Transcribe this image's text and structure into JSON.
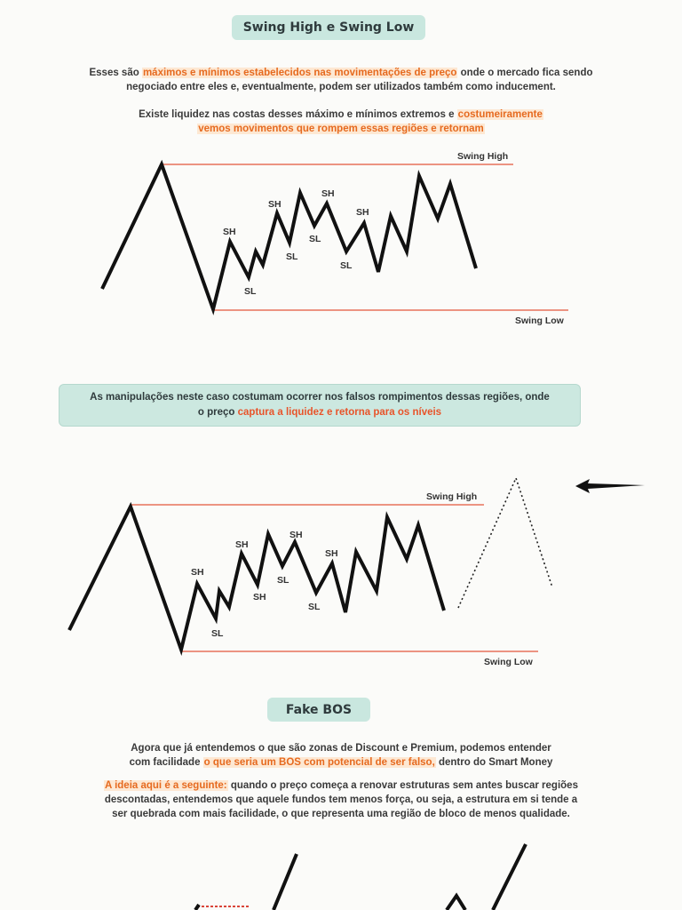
{
  "section1": {
    "title": "Swing High e Swing Low",
    "para1": {
      "a": "Esses são ",
      "highlight": "máximos e mínimos estabelecidos nas movimentações de preço",
      "b": " onde o mercado fica sendo",
      "line2": "negociado entre eles e, eventualmente, podem ser utilizados também como inducement."
    },
    "para2": {
      "a": "Existe liquidez nas costas desses máximo e mínimos extremos e ",
      "highlight1": "costumeiramente",
      "highlight2": "vemos movimentos que rompem essas regiões e retornam"
    }
  },
  "diagram1": {
    "swing_high": "Swing High",
    "swing_low": "Swing Low",
    "labels": [
      "SH",
      "SL",
      "SH",
      "SL",
      "SH",
      "SL",
      "SH",
      "SL"
    ],
    "colors": {
      "level_line": "#e8735a",
      "price_line": "#111111"
    }
  },
  "callout": {
    "a": "As manipulações neste caso costumam ocorrer nos falsos rompimentos dessas regiões, onde",
    "b": "o preço ",
    "highlight": "captura a liquidez e retorna para os níveis"
  },
  "diagram2": {
    "swing_high": "Swing High",
    "swing_low": "Swing Low",
    "labels": [
      "SH",
      "SL",
      "SH",
      "SH",
      "SH",
      "SL",
      "SH",
      "SL"
    ]
  },
  "section2": {
    "title": "Fake BOS",
    "para1": {
      "a": "Agora que já entendemos o que são zonas de Discount e Premium, podemos entender",
      "b": "com facilidade ",
      "highlight": "o que seria um BOS com potencial de ser falso,",
      "c": " dentro do Smart Money"
    },
    "para2": {
      "highlight": "A ideia aqui é a seguinte:",
      "a": " quando o preço começa a renovar estruturas sem antes buscar regiões",
      "line2": "descontadas, entendemos que aquele fundos tem menos força, ou seja, a estrutura em si tende a",
      "line3": "ser quebrada com mais facilidade, o que representa uma região de bloco de menos qualidade."
    }
  }
}
